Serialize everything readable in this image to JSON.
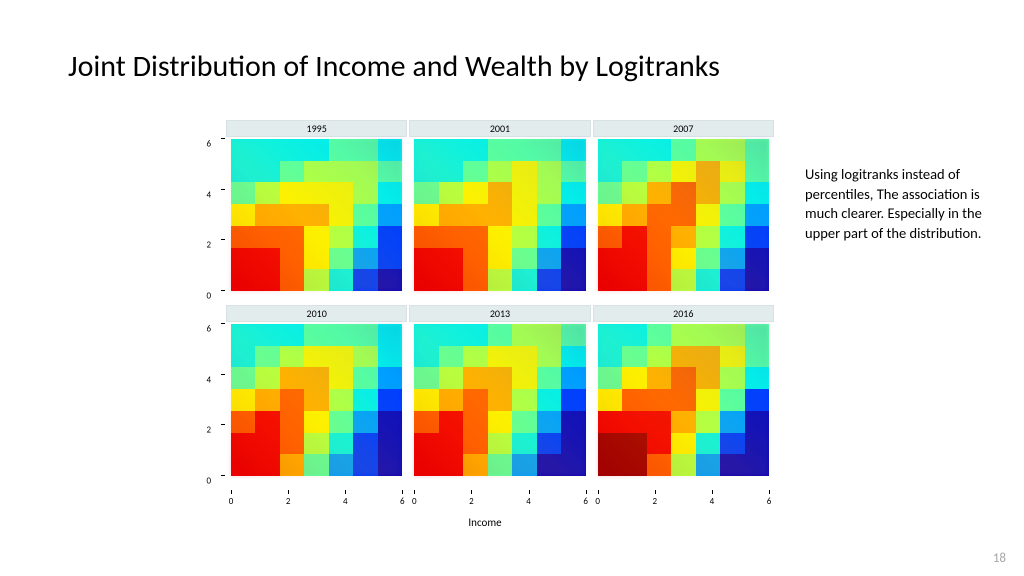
{
  "title": "Joint Distribution of Income and Wealth by Logitranks",
  "note": "Using logitranks instead of percentiles, The association is much clearer. Especially in the upper part of the distribution.",
  "page_number": "18",
  "figure": {
    "type": "heatmap-facets",
    "layout": {
      "rows": 2,
      "cols": 3
    },
    "facet_labels_row1": [
      "1995",
      "2001",
      "2007"
    ],
    "facet_labels_row2": [
      "2010",
      "2013",
      "2016"
    ],
    "header_bg": "#e3eced",
    "xlabel": "Income",
    "ylabel": "",
    "axis": {
      "xlim": [
        0,
        6
      ],
      "ylim": [
        0,
        6
      ],
      "xticks": [
        0,
        2,
        4,
        6
      ],
      "yticks": [
        0,
        2,
        4,
        6
      ],
      "tick_fontsize": 9
    },
    "color_scale": [
      "#1000b8",
      "#0034ff",
      "#009cff",
      "#05f0e8",
      "#5bff9e",
      "#b1ff45",
      "#fcf000",
      "#ffaa00",
      "#ff5a00",
      "#f20000",
      "#9e0000"
    ],
    "background_color": "#ffffff",
    "panels": {
      "1995": [
        [
          3,
          3,
          3,
          3,
          4,
          4,
          3
        ],
        [
          3,
          3,
          4,
          5,
          5,
          5,
          4
        ],
        [
          4,
          5,
          6,
          6,
          6,
          5,
          3
        ],
        [
          6,
          7,
          7,
          7,
          6,
          4,
          2
        ],
        [
          8,
          8,
          8,
          6,
          5,
          3,
          1
        ],
        [
          9,
          9,
          8,
          6,
          4,
          2,
          1
        ],
        [
          9,
          9,
          8,
          5,
          3,
          1,
          0
        ]
      ],
      "2001": [
        [
          3,
          3,
          3,
          4,
          4,
          4,
          3
        ],
        [
          3,
          3,
          4,
          5,
          6,
          5,
          4
        ],
        [
          4,
          5,
          6,
          7,
          6,
          5,
          3
        ],
        [
          6,
          7,
          7,
          7,
          6,
          4,
          2
        ],
        [
          8,
          8,
          8,
          6,
          5,
          3,
          1
        ],
        [
          9,
          9,
          8,
          6,
          4,
          2,
          0
        ],
        [
          9,
          9,
          8,
          5,
          3,
          1,
          0
        ]
      ],
      "2007": [
        [
          3,
          3,
          3,
          4,
          5,
          5,
          4
        ],
        [
          3,
          4,
          5,
          6,
          7,
          6,
          4
        ],
        [
          4,
          5,
          7,
          8,
          7,
          5,
          3
        ],
        [
          6,
          7,
          8,
          8,
          6,
          4,
          2
        ],
        [
          8,
          9,
          8,
          7,
          5,
          3,
          1
        ],
        [
          9,
          9,
          8,
          6,
          4,
          2,
          0
        ],
        [
          9,
          9,
          8,
          5,
          3,
          1,
          0
        ]
      ],
      "2010": [
        [
          3,
          3,
          3,
          4,
          4,
          4,
          3
        ],
        [
          3,
          4,
          5,
          6,
          6,
          5,
          3
        ],
        [
          4,
          5,
          7,
          7,
          6,
          4,
          2
        ],
        [
          6,
          7,
          8,
          7,
          5,
          3,
          1
        ],
        [
          8,
          9,
          8,
          6,
          4,
          2,
          0
        ],
        [
          9,
          9,
          8,
          5,
          3,
          1,
          0
        ],
        [
          9,
          9,
          7,
          4,
          2,
          1,
          0
        ]
      ],
      "2013": [
        [
          3,
          3,
          3,
          4,
          5,
          5,
          4
        ],
        [
          3,
          4,
          5,
          6,
          6,
          5,
          3
        ],
        [
          4,
          5,
          7,
          7,
          6,
          4,
          2
        ],
        [
          6,
          7,
          8,
          7,
          5,
          3,
          1
        ],
        [
          8,
          9,
          8,
          6,
          4,
          2,
          0
        ],
        [
          9,
          9,
          8,
          5,
          3,
          1,
          0
        ],
        [
          9,
          9,
          7,
          4,
          2,
          0,
          0
        ]
      ],
      "2016": [
        [
          3,
          3,
          4,
          5,
          5,
          5,
          4
        ],
        [
          3,
          4,
          5,
          7,
          7,
          6,
          4
        ],
        [
          4,
          6,
          7,
          8,
          7,
          5,
          3
        ],
        [
          6,
          8,
          8,
          8,
          6,
          4,
          1
        ],
        [
          9,
          9,
          9,
          7,
          5,
          2,
          0
        ],
        [
          10,
          10,
          9,
          6,
          3,
          1,
          0
        ],
        [
          10,
          10,
          8,
          5,
          2,
          0,
          0
        ]
      ]
    }
  }
}
